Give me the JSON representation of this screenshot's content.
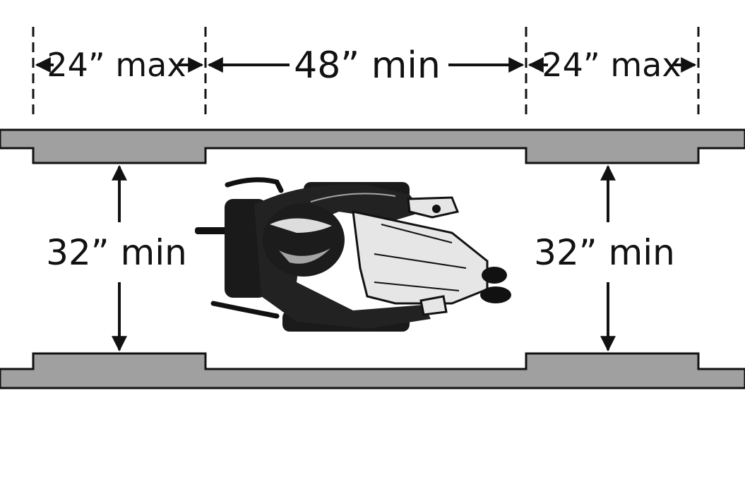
{
  "labels": {
    "left_width": "24” max",
    "center_width": "48” min",
    "right_width": "24” max",
    "left_clearance": "32” min",
    "right_clearance": "32” min"
  },
  "colors": {
    "wall_fill": "#a0a0a0",
    "line": "#111111",
    "background": "#ffffff"
  },
  "figure": {
    "icon": "wheelchair-user-top-view-icon"
  }
}
